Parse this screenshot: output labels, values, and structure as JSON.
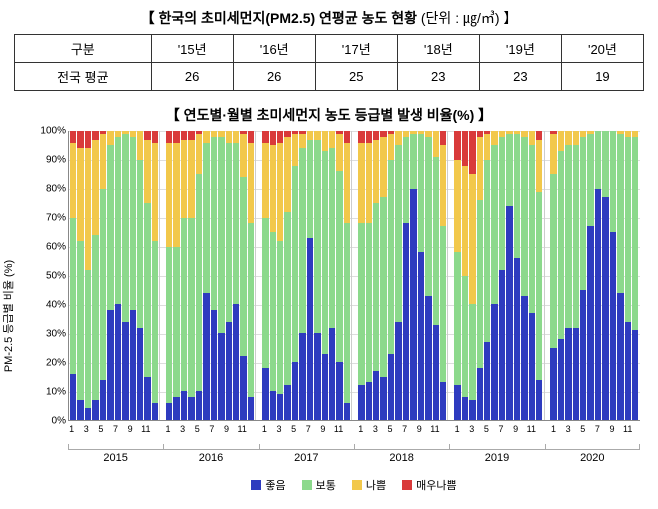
{
  "table": {
    "title_main": "【 한국의 초미세먼지(PM2.5) 연평균 농도 현황",
    "title_unit": "(단위 : ㎍/㎥) 】",
    "title_fontsize": 14,
    "header_label": "구분",
    "row_label": "전국 평균",
    "columns": [
      "'15년",
      "'16년",
      "'17년",
      "'18년",
      "'19년",
      "'20년"
    ],
    "values": [
      26,
      26,
      25,
      23,
      23,
      19
    ],
    "cell_fontsize": 13,
    "border_color": "#333333"
  },
  "chart": {
    "title": "【 연도별·월별 초미세먼지 농도 등급별 발생 비율(%) 】",
    "title_fontsize": 14,
    "type": "stacked-bar",
    "ylabel": "PM-2.5 등급별 비율 (%)",
    "ylabel_fontsize": 11,
    "ylim": [
      0,
      100
    ],
    "ytick_step": 10,
    "ytick_fontsize": 10,
    "xmonth_fontsize": 9,
    "xyear_fontsize": 11,
    "legend_fontsize": 11,
    "grid_color": "#dddddd",
    "axis_color": "#888888",
    "background_color": "#ffffff",
    "years": [
      2015,
      2016,
      2017,
      2018,
      2019,
      2020
    ],
    "months_shown": [
      1,
      3,
      5,
      7,
      9,
      11
    ],
    "months_per_year": 12,
    "categories": [
      {
        "key": "good",
        "label": "좋음",
        "color": "#2e3bbf"
      },
      {
        "key": "normal",
        "label": "보통",
        "color": "#8cd98c"
      },
      {
        "key": "bad",
        "label": "나쁨",
        "color": "#f2c84b"
      },
      {
        "key": "vbad",
        "label": "매우나쁨",
        "color": "#d93a3a"
      }
    ],
    "data": [
      [
        16,
        7,
        4,
        7,
        14,
        38,
        40,
        34,
        38,
        32,
        15,
        6
      ],
      [
        6,
        8,
        10,
        8,
        10,
        44,
        38,
        30,
        34,
        40,
        22,
        8
      ],
      [
        18,
        10,
        9,
        12,
        20,
        30,
        63,
        30,
        23,
        32,
        20,
        6
      ],
      [
        12,
        13,
        17,
        15,
        23,
        34,
        68,
        80,
        58,
        43,
        33,
        13
      ],
      [
        12,
        8,
        7,
        18,
        27,
        40,
        52,
        74,
        56,
        43,
        37,
        14
      ],
      [
        25,
        28,
        32,
        32,
        45,
        67,
        80,
        77,
        65,
        44,
        34,
        31
      ]
    ],
    "data_normal": [
      [
        54,
        55,
        48,
        57,
        66,
        57,
        58,
        65,
        60,
        58,
        60,
        56
      ],
      [
        54,
        52,
        60,
        62,
        75,
        52,
        60,
        68,
        62,
        56,
        62,
        60
      ],
      [
        52,
        55,
        53,
        60,
        68,
        64,
        34,
        67,
        70,
        62,
        66,
        62
      ],
      [
        56,
        55,
        58,
        62,
        67,
        61,
        30,
        19,
        41,
        55,
        58,
        54
      ],
      [
        46,
        42,
        33,
        58,
        63,
        55,
        46,
        25,
        43,
        55,
        58,
        65
      ],
      [
        60,
        65,
        63,
        63,
        53,
        32,
        20,
        23,
        35,
        55,
        64,
        67
      ]
    ],
    "data_bad": [
      [
        26,
        32,
        42,
        33,
        19,
        5,
        2,
        1,
        2,
        10,
        22,
        34
      ],
      [
        36,
        36,
        27,
        27,
        14,
        4,
        2,
        2,
        4,
        4,
        15,
        28
      ],
      [
        26,
        30,
        34,
        26,
        11,
        5,
        3,
        3,
        7,
        6,
        13,
        28
      ],
      [
        28,
        28,
        22,
        21,
        9,
        5,
        2,
        1,
        1,
        2,
        9,
        28
      ],
      [
        32,
        38,
        45,
        22,
        9,
        5,
        2,
        1,
        1,
        2,
        5,
        18
      ],
      [
        14,
        7,
        5,
        5,
        2,
        1,
        0,
        0,
        0,
        1,
        2,
        2
      ]
    ],
    "data_vbad": [
      [
        4,
        6,
        6,
        3,
        1,
        0,
        0,
        0,
        0,
        0,
        3,
        4
      ],
      [
        4,
        4,
        3,
        3,
        1,
        0,
        0,
        0,
        0,
        0,
        1,
        4
      ],
      [
        4,
        5,
        4,
        2,
        1,
        1,
        0,
        0,
        0,
        0,
        1,
        4
      ],
      [
        4,
        4,
        3,
        2,
        1,
        0,
        0,
        0,
        0,
        0,
        0,
        5
      ],
      [
        10,
        12,
        15,
        2,
        1,
        0,
        0,
        0,
        0,
        0,
        0,
        3
      ],
      [
        1,
        0,
        0,
        0,
        0,
        0,
        0,
        0,
        0,
        0,
        0,
        0
      ]
    ]
  }
}
